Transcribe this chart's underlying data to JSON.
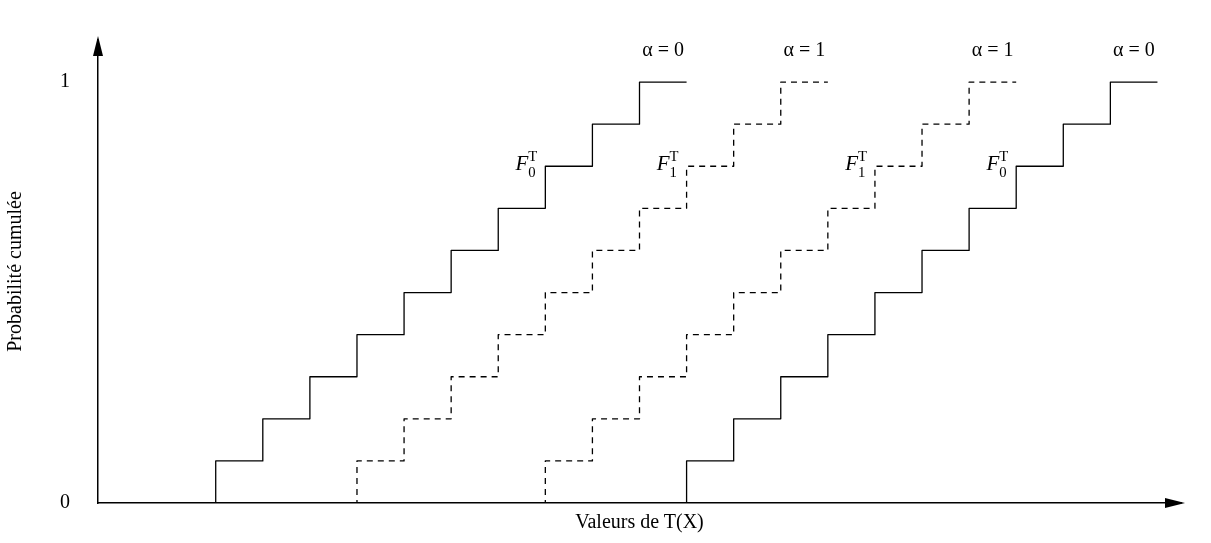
{
  "chart_data": {
    "type": "step",
    "xlabel": "Valeurs de T(X)",
    "ylabel": "Probabilité cumulée",
    "categories": [
      null,
      null,
      null,
      null,
      null,
      null,
      null,
      null,
      null,
      null,
      null,
      null,
      null,
      null,
      null,
      null,
      null,
      null,
      null,
      null,
      null,
      null,
      null
    ],
    "ylim": [
      0,
      1.1
    ],
    "yticks": [
      0,
      1
    ],
    "tick_labels": "y",
    "grid": false,
    "legend": false,
    "marker": "none",
    "series": [
      {
        "name": "F$_{0}$$^{T}$",
        "color": "#000000",
        "line_style": "solid",
        "values": [
          null,
          0,
          0.1,
          0.2,
          0.3,
          0.4,
          0.5,
          0.6,
          0.7,
          0.8,
          0.9,
          1.0,
          1.0,
          null,
          null,
          null,
          null,
          null,
          null,
          null,
          null,
          null,
          null
        ]
      },
      {
        "name": "F$_{1}$$^{T}$",
        "color": "#000000",
        "line_style": "dashed",
        "values": [
          null,
          null,
          null,
          null,
          0,
          0.1,
          0.2,
          0.3,
          0.4,
          0.5,
          0.6,
          0.7,
          0.8,
          0.9,
          1.0,
          1.0,
          null,
          null,
          null,
          null,
          null,
          null,
          null
        ]
      },
      {
        "name": "F$_{1}$$^{T}$",
        "color": "#000000",
        "line_style": "dashed",
        "values": [
          null,
          null,
          null,
          null,
          null,
          null,
          null,
          null,
          0,
          0.1,
          0.2,
          0.3,
          0.4,
          0.5,
          0.6,
          0.7,
          0.8,
          0.9,
          1.0,
          1.0,
          null,
          null,
          null
        ]
      },
      {
        "name": "F$_{0}$$^{T}$",
        "color": "#000000",
        "line_style": "solid",
        "values": [
          null,
          null,
          null,
          null,
          null,
          null,
          null,
          null,
          null,
          null,
          null,
          0,
          0.1,
          0.2,
          0.3,
          0.4,
          0.5,
          0.6,
          0.7,
          0.8,
          0.9,
          1.0,
          1.0
        ]
      }
    ],
    "annotations": [
      "α = 0",
      "α = 1",
      "α = 1",
      "α = 0"
    ]
  }
}
